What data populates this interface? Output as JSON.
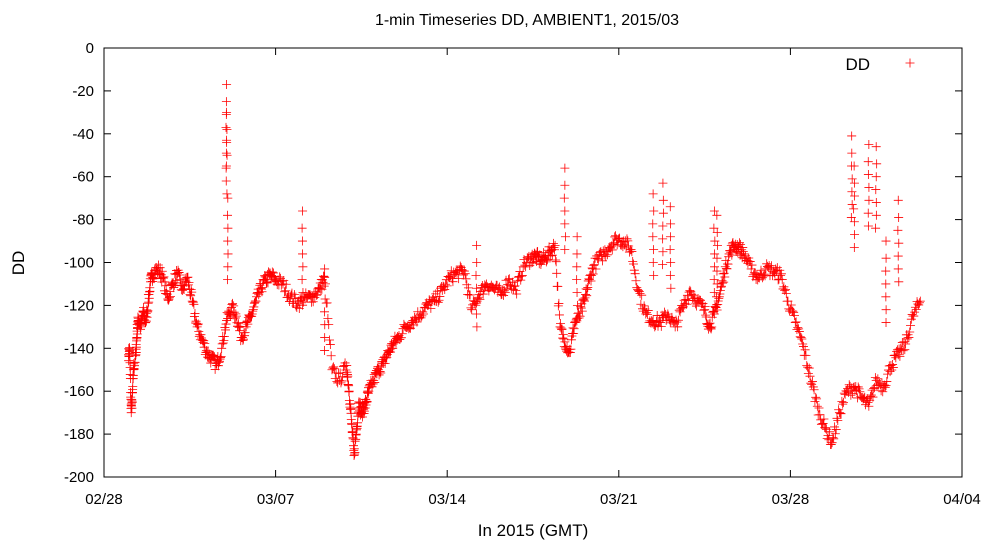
{
  "chart_data": {
    "type": "scatter",
    "title": "1-min Timeseries DD, AMBIENT1, 2015/03",
    "xlabel": "In 2015 (GMT)",
    "ylabel": "DD",
    "xlim": [
      "2015-02-28",
      "2015-04-04"
    ],
    "ylim": [
      -200,
      0
    ],
    "x_ticks": [
      "02/28",
      "03/07",
      "03/14",
      "03/21",
      "03/28",
      "04/04"
    ],
    "y_ticks": [
      0,
      -20,
      -40,
      -60,
      -80,
      -100,
      -120,
      -140,
      -160,
      -180,
      -200
    ],
    "legend": {
      "position": "top-right",
      "entries": [
        "DD"
      ]
    },
    "marker": "+",
    "grid": false,
    "colors": {
      "series": "#ff0000",
      "axes": "#000000",
      "background": "#ffffff"
    },
    "series": [
      {
        "name": "DD",
        "x_unit": "days since 2015-03-01 00:00 GMT (day 0 = 03/01)",
        "x": [
          0,
          0.05,
          0.1,
          0.15,
          0.2,
          0.3,
          0.35,
          0.4,
          0.5,
          0.6,
          0.7,
          0.8,
          0.9,
          1.0,
          1.2,
          1.4,
          1.6,
          1.8,
          2.0,
          2.2,
          2.4,
          2.6,
          2.8,
          3.0,
          3.2,
          3.4,
          3.6,
          3.8,
          4.0,
          4.2,
          4.4,
          4.6,
          4.8,
          5.0,
          5.2,
          5.4,
          5.6,
          5.8,
          6.0,
          6.3,
          6.6,
          6.9,
          7.2,
          7.5,
          7.8,
          8.0,
          8.3,
          8.6,
          8.9,
          9.0,
          9.1,
          9.2,
          9.3,
          9.4,
          9.5,
          9.6,
          9.7,
          9.8,
          10.0,
          10.2,
          10.4,
          10.6,
          10.8,
          11.0,
          11.3,
          11.6,
          11.9,
          12.2,
          12.5,
          12.8,
          13.1,
          13.4,
          13.7,
          14.0,
          14.3,
          14.6,
          14.9,
          15.2,
          15.5,
          15.8,
          16.1,
          16.4,
          16.6,
          16.8,
          17.0,
          17.2,
          17.4,
          17.6,
          17.8,
          18.0,
          18.2,
          18.4,
          18.6,
          18.8,
          19.0,
          19.3,
          19.6,
          19.9,
          20.2,
          20.5,
          20.8,
          21.1,
          21.4,
          21.7,
          22.0,
          22.3,
          22.6,
          22.9,
          23.2,
          23.5,
          23.7,
          23.9,
          24.1,
          24.3,
          24.5,
          24.7,
          24.9,
          25.1,
          25.4,
          25.7,
          26.0,
          26.3,
          26.6,
          26.9,
          27.2,
          27.5,
          27.8,
          28.1,
          28.4,
          28.7,
          29.0,
          29.3,
          29.6,
          29.9,
          30.2,
          30.5,
          30.8,
          31.1,
          31.4,
          31.7,
          32.0,
          32.3
        ],
        "y": [
          -143,
          -141,
          -168,
          -165,
          -150,
          -143,
          -132,
          -126,
          -130,
          -123,
          -128,
          -119,
          -109,
          -105,
          -103,
          -107,
          -117,
          -110,
          -105,
          -113,
          -107,
          -118,
          -130,
          -136,
          -142,
          -145,
          -148,
          -140,
          -127,
          -121,
          -125,
          -135,
          -130,
          -125,
          -118,
          -112,
          -108,
          -106,
          -108,
          -110,
          -116,
          -119,
          -117,
          -116,
          -112,
          -107,
          -150,
          -155,
          -148,
          -160,
          -175,
          -190,
          -178,
          -165,
          -170,
          -168,
          -165,
          -160,
          -155,
          -150,
          -147,
          -142,
          -138,
          -135,
          -130,
          -127,
          -124,
          -120,
          -118,
          -113,
          -107,
          -105,
          -104,
          -122,
          -115,
          -110,
          -112,
          -115,
          -108,
          -113,
          -102,
          -98,
          -97,
          -99,
          -98,
          -95,
          -92,
          -130,
          -137,
          -142,
          -128,
          -125,
          -118,
          -108,
          -101,
          -97,
          -93,
          -89,
          -90,
          -94,
          -113,
          -124,
          -127,
          -128,
          -124,
          -130,
          -121,
          -113,
          -118,
          -122,
          -130,
          -124,
          -116,
          -105,
          -96,
          -92,
          -93,
          -96,
          -103,
          -107,
          -103,
          -104,
          -106,
          -118,
          -128,
          -138,
          -153,
          -167,
          -177,
          -184,
          -170,
          -160,
          -158,
          -163,
          -167,
          -155,
          -158,
          -148,
          -143,
          -138,
          -125,
          -118
        ],
        "spike_x": [
          4.0,
          4.0,
          4.05,
          7.1,
          8.0,
          14.2,
          17.8,
          18.3,
          21.4,
          21.8,
          22.1,
          23.9,
          24.0,
          29.5,
          29.6,
          30.2,
          30.5,
          30.9,
          31.4
        ],
        "spike_y": [
          -17,
          -30,
          -70,
          -76,
          -103,
          -92,
          -56,
          -88,
          -68,
          -63,
          -74,
          -76,
          -78,
          -41,
          -55,
          -45,
          -46,
          -90,
          -71
        ]
      }
    ]
  }
}
